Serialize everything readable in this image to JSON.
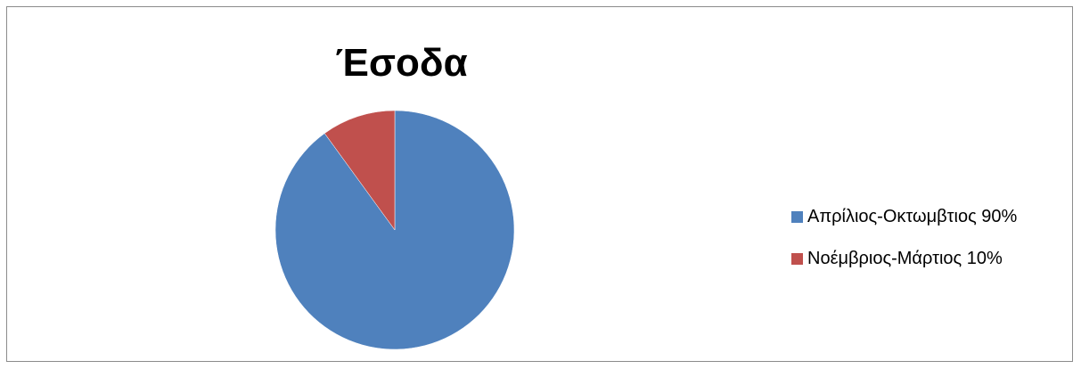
{
  "chart_data": {
    "type": "pie",
    "title": "Έσοδα",
    "slices": [
      {
        "label": "Απρίλιος-Οκτωμβτιος 90%",
        "value": 90,
        "color": "#4F81BD"
      },
      {
        "label": "Νοέμβριος-Μάρτιος 10%",
        "value": 10,
        "color": "#C0504D"
      }
    ],
    "legend_position": "right",
    "start_angle": "12 o'clock",
    "direction": "clockwise"
  }
}
